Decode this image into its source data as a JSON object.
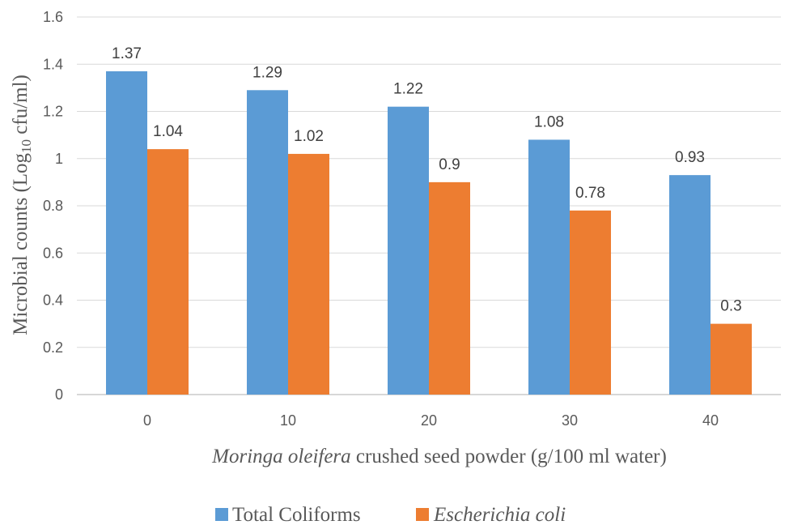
{
  "chart_data": {
    "type": "bar",
    "categories": [
      "0",
      "10",
      "20",
      "30",
      "40"
    ],
    "series": [
      {
        "name": "Total Coliforms",
        "color": "#5b9bd5",
        "values": [
          1.37,
          1.29,
          1.22,
          1.08,
          0.93
        ]
      },
      {
        "name": "Escherichia coli",
        "color": "#ed7d31",
        "values": [
          1.04,
          1.02,
          0.9,
          0.78,
          0.3
        ]
      }
    ],
    "data_labels": [
      [
        "1.37",
        "1.29",
        "1.22",
        "1.08",
        "0.93"
      ],
      [
        "1.04",
        "1.02",
        "0.9",
        "0.78",
        "0.3"
      ]
    ],
    "y_ticks": [
      "0",
      "0.2",
      "0.4",
      "0.6",
      "0.8",
      "1",
      "1.2",
      "1.4",
      "1.6"
    ],
    "ylim": [
      0,
      1.6
    ],
    "xlabel_italic": "Moringa oleifera",
    "xlabel_rest": " crushed seed powder (g/100 ml water)",
    "ylabel_main": "Microbial counts (Log",
    "ylabel_sub": "10",
    "ylabel_tail": " cfu/ml)",
    "grid": true,
    "legend": "bottom-center"
  }
}
